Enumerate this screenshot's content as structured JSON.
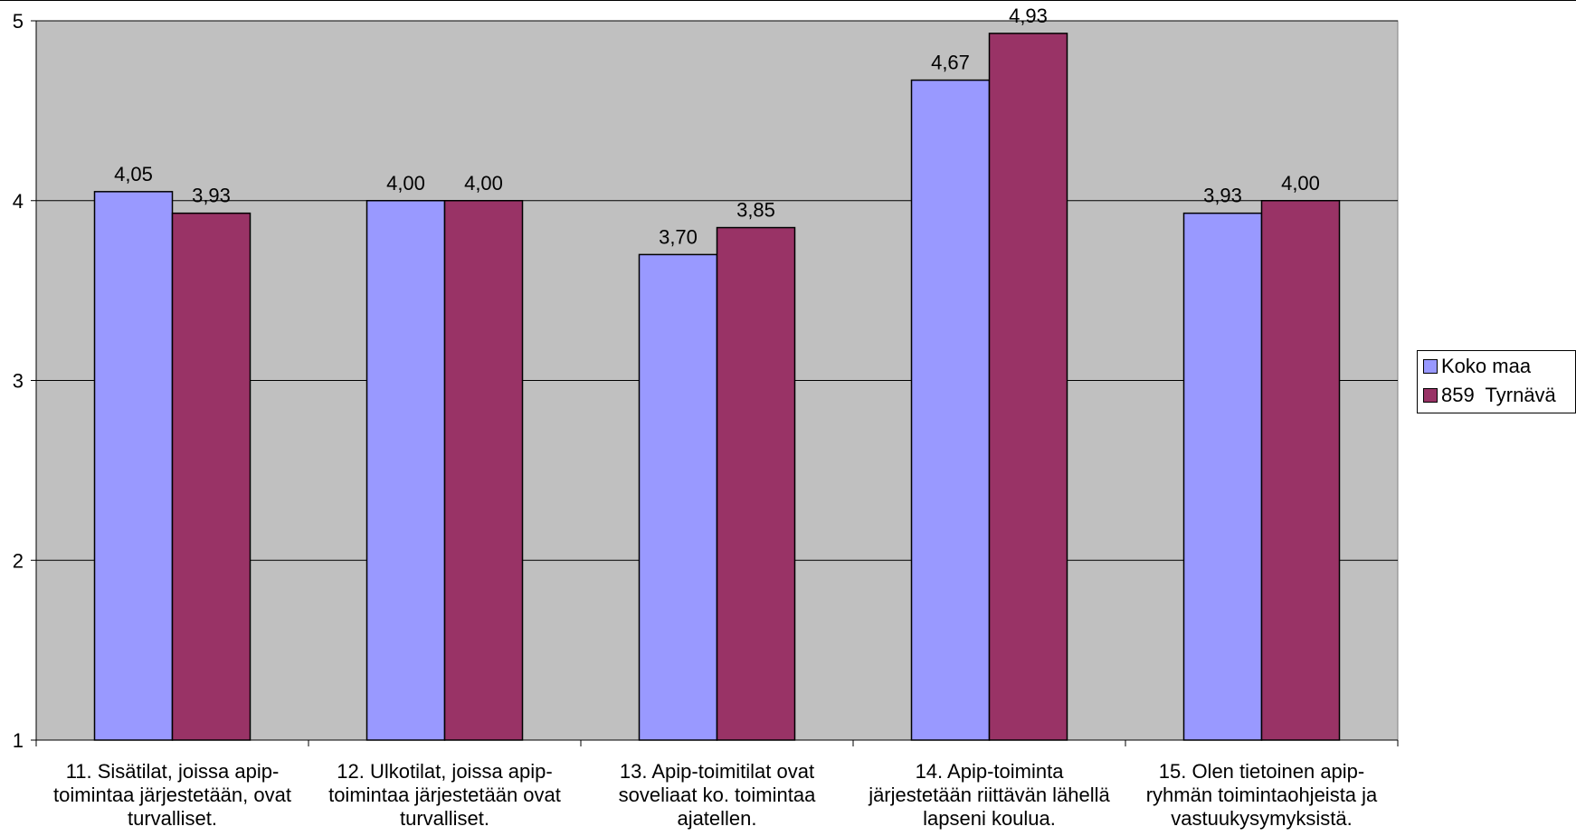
{
  "chart_data": {
    "type": "bar",
    "categories": [
      "11. Sisätilat, joissa apip-toimintaa järjestetään, ovat turvalliset.",
      "12. Ulkotilat, joissa apip-toimintaa järjestetään ovat turvalliset.",
      "13. Apip-toimitilat ovat soveliaat ko. toimintaa ajatellen.",
      "14. Apip-toiminta järjestetään riittävän lähellä lapseni koulua.",
      "15. Olen tietoinen apip-ryhmän toimintaohjeista ja vastuukysymyksistä."
    ],
    "category_lines": [
      [
        "11. Sisätilat, joissa apip-",
        "toimintaa järjestetään, ovat",
        "turvalliset."
      ],
      [
        "12. Ulkotilat, joissa apip-",
        "toimintaa järjestetään ovat",
        "turvalliset."
      ],
      [
        "13. Apip-toimitilat ovat",
        "soveliaat ko. toimintaa",
        "ajatellen."
      ],
      [
        "14. Apip-toiminta",
        "järjestetään riittävän lähellä",
        "lapseni koulua."
      ],
      [
        "15. Olen tietoinen apip-",
        "ryhmän toimintaohjeista ja",
        "vastuukysymyksistä."
      ]
    ],
    "series": [
      {
        "name": "Koko maa",
        "color": "#9999ff",
        "values": [
          4.05,
          4.0,
          3.7,
          4.67,
          3.93
        ],
        "labels": [
          "4,05",
          "4,00",
          "3,70",
          "4,67",
          "3,93"
        ]
      },
      {
        "name": "859  Tyrnävä",
        "color": "#993366",
        "values": [
          3.93,
          4.0,
          3.85,
          4.93,
          4.0
        ],
        "labels": [
          "3,93",
          "4,00",
          "3,85",
          "4,93",
          "4,00"
        ]
      }
    ],
    "ylim": [
      1,
      5
    ],
    "yticks": [
      "1",
      "2",
      "3",
      "4",
      "5"
    ],
    "grid": true,
    "plot_background": "#c0c0c0",
    "legend_position": "right",
    "title": "",
    "xlabel": "",
    "ylabel": ""
  }
}
